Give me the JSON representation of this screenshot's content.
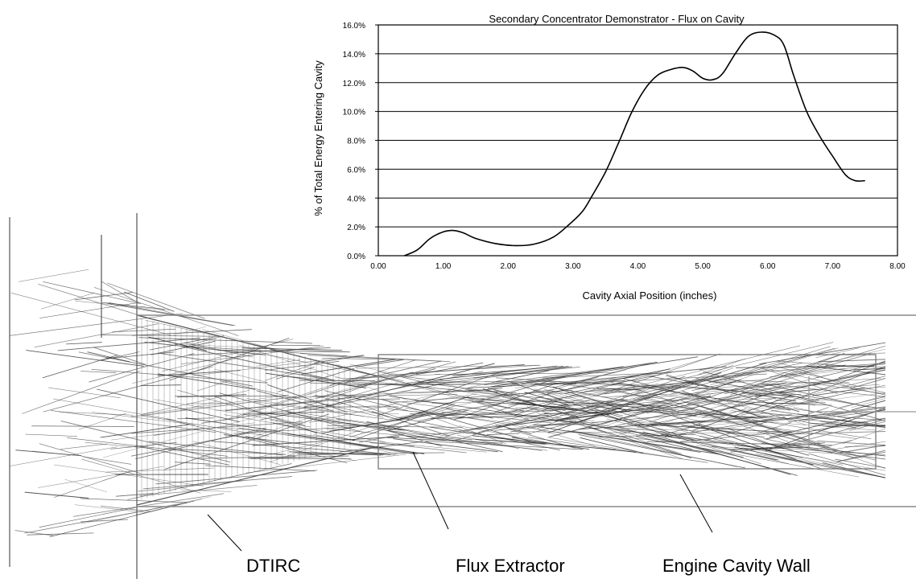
{
  "chart_data": {
    "type": "line",
    "title": "Secondary Concentrator Demonstrator - Flux on Cavity",
    "xlabel": "Cavity Axial Position (inches)",
    "ylabel": "% of Total Energy Entering Cavity",
    "xlim": [
      0,
      8
    ],
    "ylim": [
      0,
      16
    ],
    "x_ticks": [
      "0.00",
      "1.00",
      "2.00",
      "3.00",
      "4.00",
      "5.00",
      "6.00",
      "7.00",
      "8.00"
    ],
    "y_ticks": [
      "0.0%",
      "2.0%",
      "4.0%",
      "6.0%",
      "8.0%",
      "10.0%",
      "12.0%",
      "14.0%",
      "16.0%"
    ],
    "grid": "horizontal",
    "series": [
      {
        "x": [
          0.4,
          0.6,
          0.8,
          1.0,
          1.15,
          1.3,
          1.5,
          1.8,
          2.1,
          2.4,
          2.7,
          2.95,
          3.15,
          3.3,
          3.5,
          3.7,
          3.9,
          4.1,
          4.3,
          4.5,
          4.7,
          4.85,
          5.0,
          5.15,
          5.3,
          5.5,
          5.7,
          5.9,
          6.1,
          6.25,
          6.4,
          6.6,
          6.8,
          7.0,
          7.2,
          7.35,
          7.5
        ],
        "y": [
          0.0,
          0.4,
          1.2,
          1.65,
          1.75,
          1.6,
          1.2,
          0.85,
          0.7,
          0.8,
          1.3,
          2.2,
          3.1,
          4.2,
          5.8,
          7.8,
          9.9,
          11.5,
          12.5,
          12.9,
          13.05,
          12.8,
          12.3,
          12.2,
          12.6,
          14.0,
          15.2,
          15.5,
          15.3,
          14.6,
          12.5,
          10.0,
          8.3,
          6.9,
          5.6,
          5.2,
          5.2
        ]
      }
    ]
  },
  "diagram": {
    "labels": {
      "dtirc": "DTIRC",
      "flux_extractor": "Flux Extractor",
      "engine_cavity_wall": "Engine Cavity Wall"
    }
  }
}
